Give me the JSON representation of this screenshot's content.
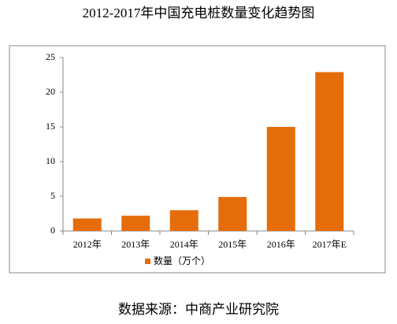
{
  "chart_data": {
    "type": "bar",
    "title": "2012-2017年中国充电桩数量变化趋势图",
    "categories": [
      "2012年",
      "2013年",
      "2014年",
      "2015年",
      "2016年",
      "2017年E"
    ],
    "series": [
      {
        "name": "数量（万个）",
        "color": "#e46c0a",
        "values": [
          1.8,
          2.2,
          3.0,
          4.9,
          15,
          22.9
        ]
      }
    ],
    "ylim": [
      0,
      25
    ],
    "yticks": [
      0,
      5,
      10,
      15,
      20,
      25
    ],
    "grid": false,
    "legend": "bottom",
    "source": "数据来源：中商产业研究院"
  }
}
